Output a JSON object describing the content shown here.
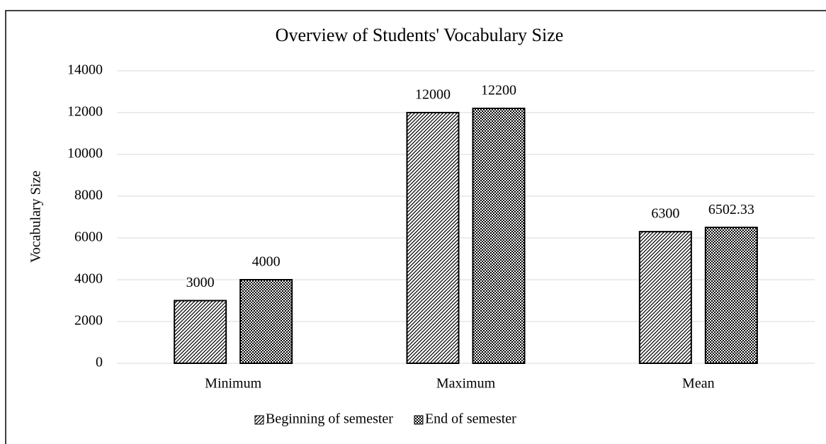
{
  "chart_data": {
    "type": "bar",
    "title": "Overview of Students' Vocabulary Size",
    "y_label": "Vocabulary Size",
    "categories": [
      "Minimum",
      "Maximum",
      "Mean"
    ],
    "series": [
      {
        "name": "Beginning of semester",
        "color": "#000000",
        "pattern": "diagonal",
        "values": [
          3000,
          12000,
          6300
        ]
      },
      {
        "name": "End of semester",
        "color": "#000000",
        "pattern": "checker",
        "values": [
          4000,
          12200,
          6502.33
        ]
      }
    ],
    "ylim": [
      0,
      14000
    ],
    "yticks": [
      0,
      2000,
      4000,
      6000,
      8000,
      10000,
      12000,
      14000
    ],
    "grid": true,
    "legend": "bottom",
    "data_labels": true
  }
}
